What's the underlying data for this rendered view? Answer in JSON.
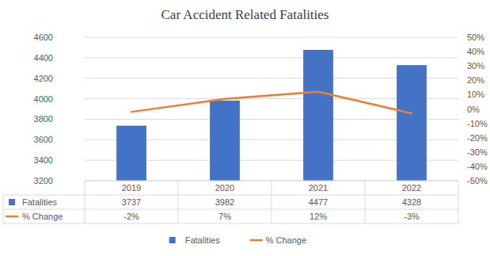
{
  "chart_data": {
    "type": "bar",
    "title": "Car Accident Related Fatalities",
    "categories": [
      "2019",
      "2020",
      "2021",
      "2022"
    ],
    "series": [
      {
        "name": "Fatalities",
        "type": "bar",
        "color": "#4472c4",
        "values": [
          3737,
          3982,
          4477,
          4328
        ]
      },
      {
        "name": "% Change",
        "type": "line",
        "color": "#ed7d31",
        "axis": "y2",
        "values": [
          -2,
          7,
          12,
          -3
        ],
        "value_labels": [
          "-2%",
          "7%",
          "12%",
          "-3%"
        ]
      }
    ],
    "ylim": [
      3200,
      4600
    ],
    "yticks": [
      3200,
      3400,
      3600,
      3800,
      4000,
      4200,
      4400,
      4600
    ],
    "y2lim": [
      -50,
      50
    ],
    "y2ticks": [
      {
        "value": -50,
        "label": "-50%"
      },
      {
        "value": -40,
        "label": "-40%"
      },
      {
        "value": -30,
        "label": "-30%"
      },
      {
        "value": -20,
        "label": "-20%"
      },
      {
        "value": -10,
        "label": "-10%"
      },
      {
        "value": 0,
        "label": "0%"
      },
      {
        "value": 10,
        "label": "10%"
      },
      {
        "value": 20,
        "label": "20%"
      },
      {
        "value": 30,
        "label": "30%"
      },
      {
        "value": 40,
        "label": "40%"
      },
      {
        "value": 50,
        "label": "50%"
      }
    ],
    "grid": true,
    "legend": "bottom",
    "data_labels": true
  }
}
